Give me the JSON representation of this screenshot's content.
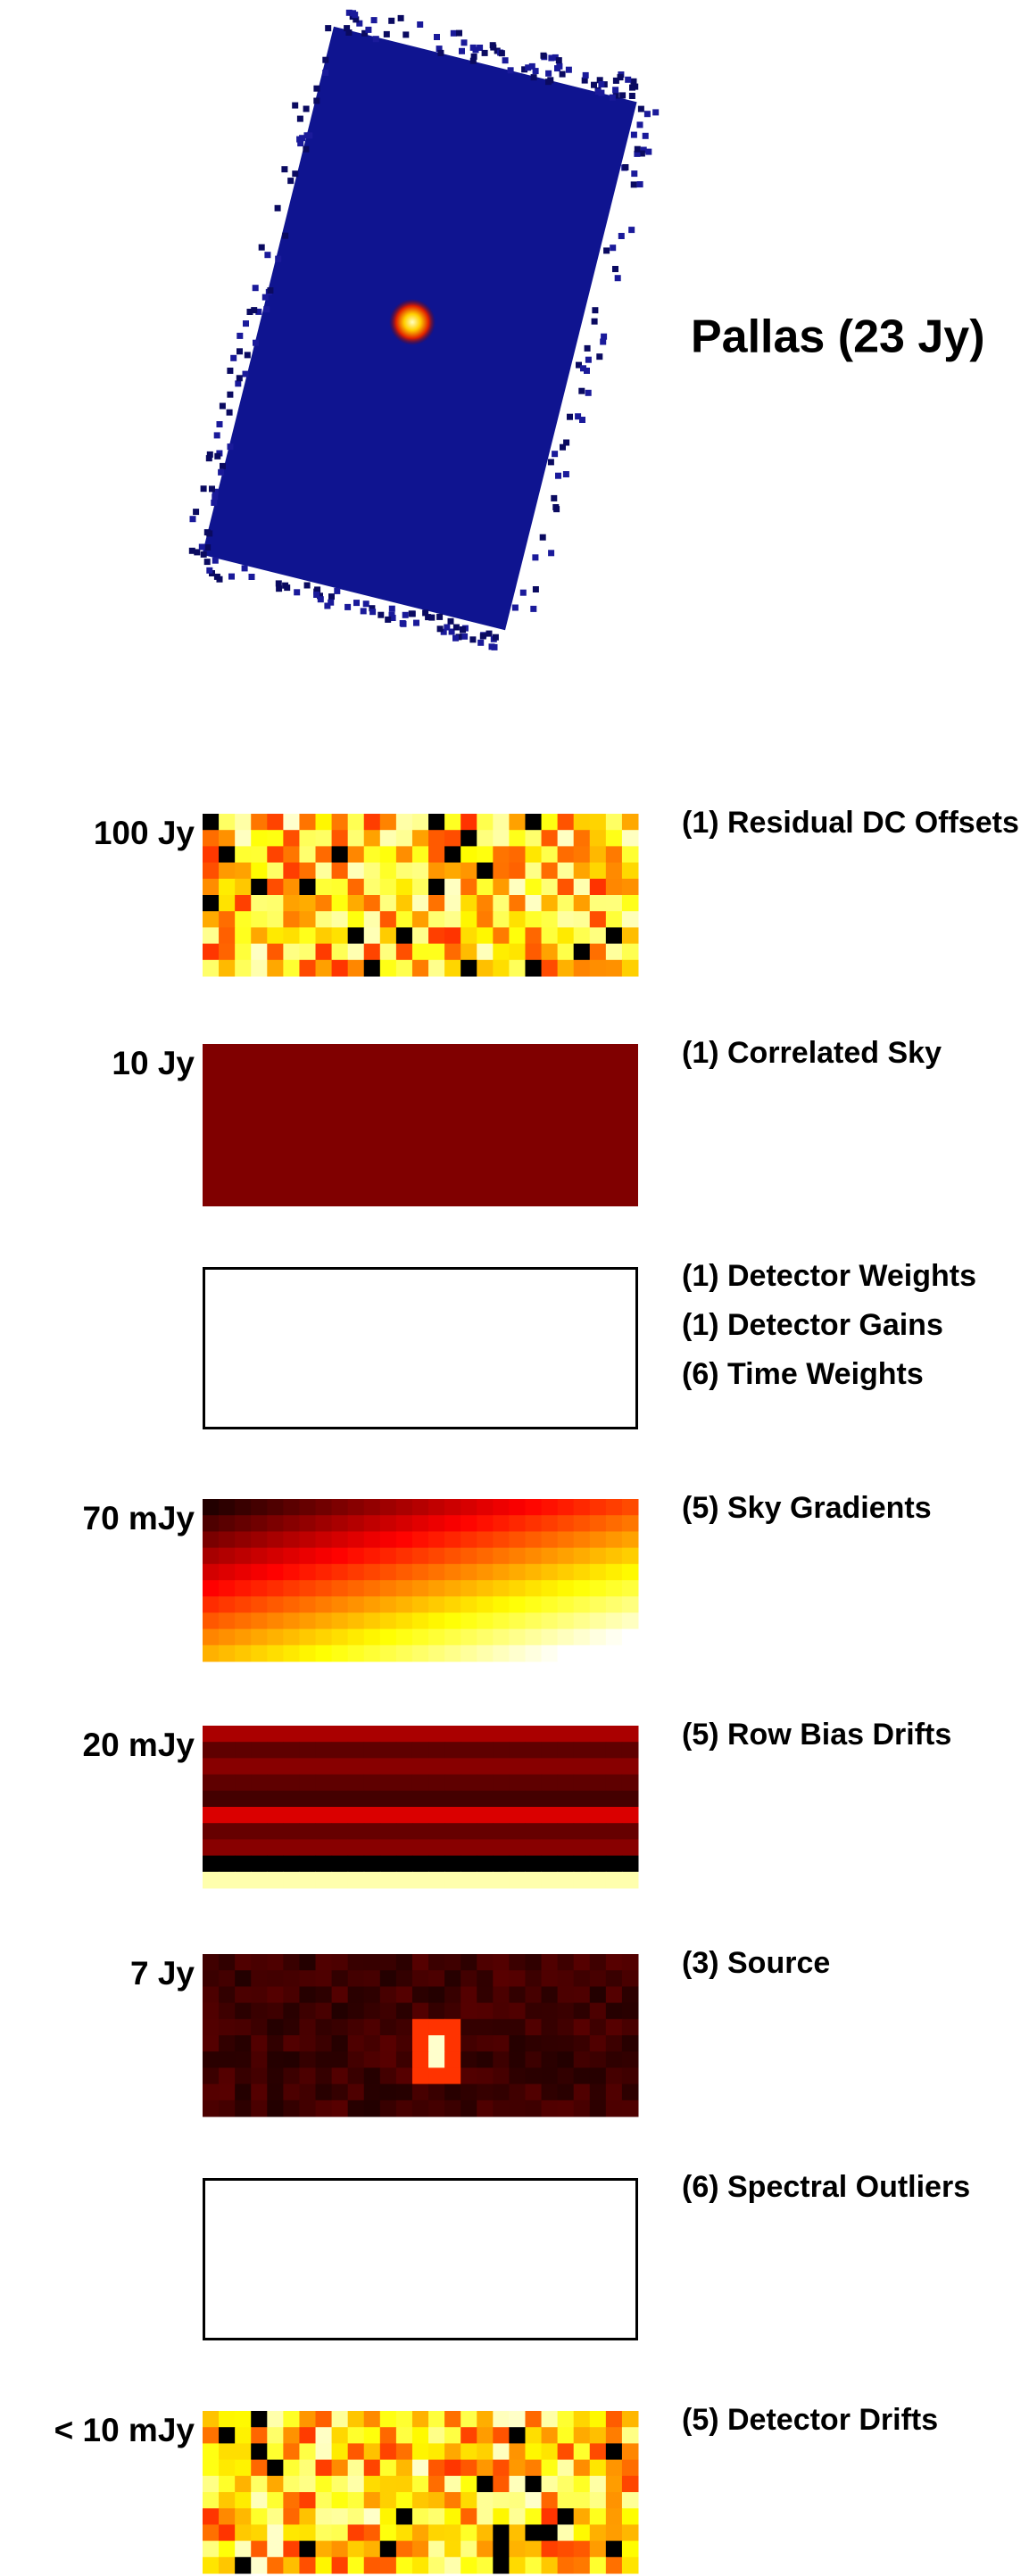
{
  "title": "Pallas (23 Jy)",
  "panels": [
    {
      "scale": "100 Jy",
      "labels": [
        "(1) Residual DC Offsets"
      ]
    },
    {
      "scale": "10 Jy",
      "labels": [
        "(1) Correlated Sky"
      ]
    },
    {
      "labels": [
        "(1) Detector Weights",
        "(1) Detector Gains",
        "(6) Time Weights"
      ]
    },
    {
      "scale": "70 mJy",
      "labels": [
        "(5) Sky Gradients"
      ]
    },
    {
      "scale": "20 mJy",
      "labels": [
        "(5) Row Bias Drifts"
      ]
    },
    {
      "scale": "7 Jy",
      "labels": [
        "(3) Source"
      ]
    },
    {
      "labels": [
        "(6) Spectral Outliers"
      ]
    },
    {
      "scale": "< 10 mJy",
      "labels": [
        "(5) Detector Drifts"
      ]
    }
  ]
}
